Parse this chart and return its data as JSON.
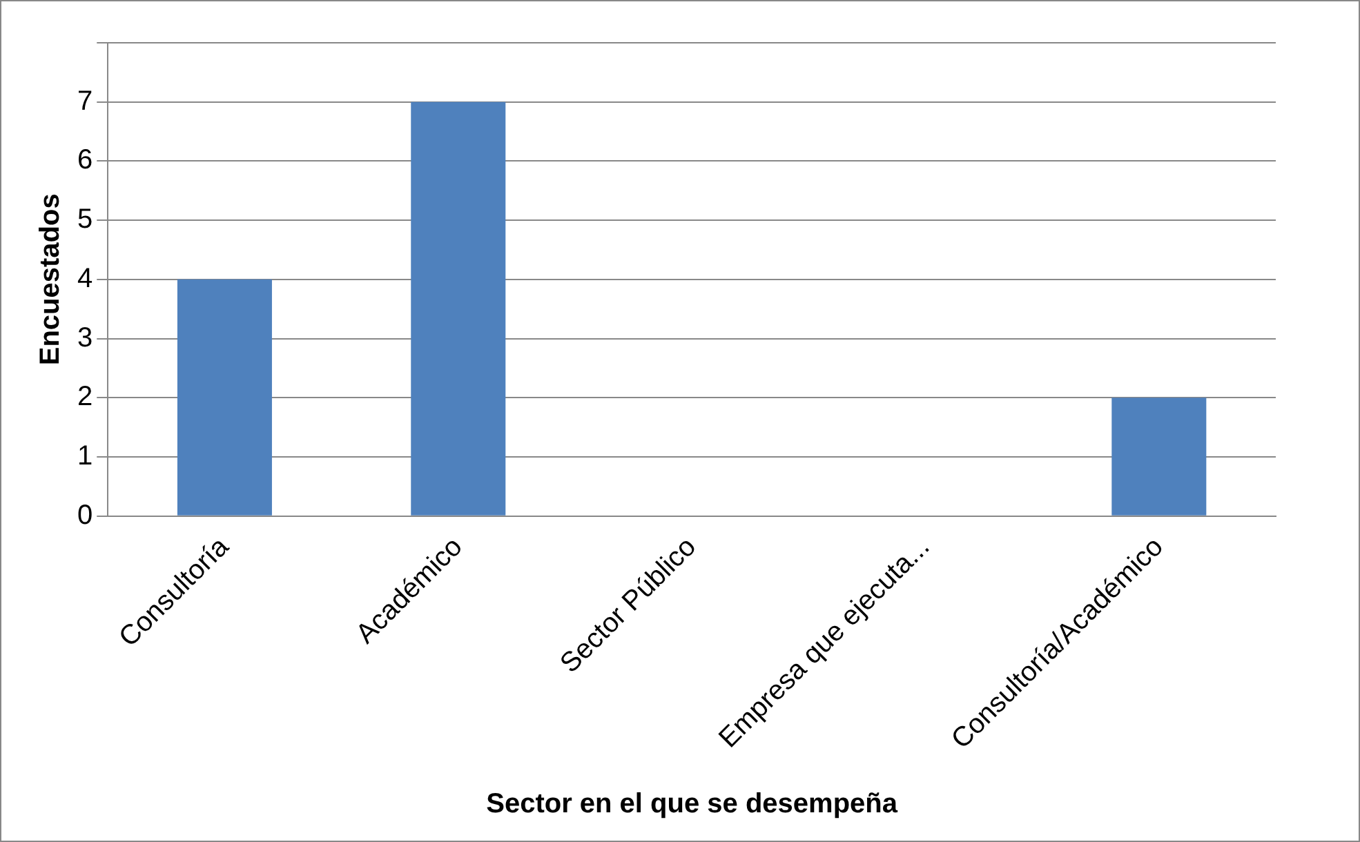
{
  "chart_data": {
    "type": "bar",
    "xlabel": "Sector en el que se desempeña",
    "ylabel": "Encuestados",
    "categories": [
      "Consultoría",
      "Académico",
      "Sector Público",
      "Empresa que ejecuta...",
      "Consultoría/Académico"
    ],
    "values": [
      4,
      7,
      0,
      0,
      2
    ],
    "color": "#4f81bd",
    "ylim": [
      0,
      8
    ],
    "yticks": [
      0,
      1,
      2,
      3,
      4,
      5,
      6,
      7,
      {
        "value": 8,
        "label": null
      }
    ],
    "grid": "y",
    "legend": false
  }
}
